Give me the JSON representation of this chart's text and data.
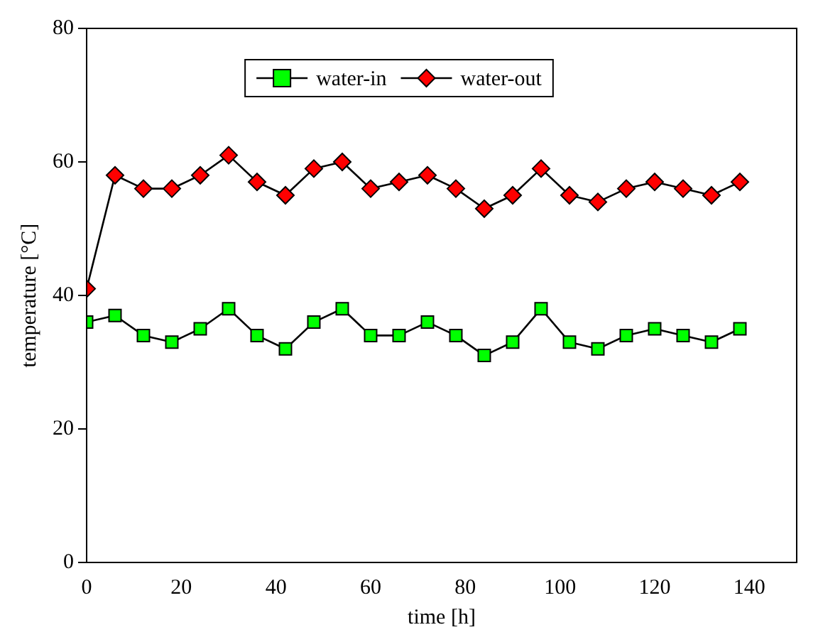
{
  "chart_data": {
    "type": "line",
    "xlabel": "time [h]",
    "ylabel": "temperature [°C]",
    "x": [
      0,
      6,
      12,
      18,
      24,
      30,
      36,
      42,
      48,
      54,
      60,
      66,
      72,
      78,
      84,
      90,
      96,
      102,
      108,
      114,
      120,
      126,
      132,
      138
    ],
    "series": [
      {
        "name": "water-in",
        "color": "#00ff00",
        "marker": "square",
        "values": [
          36,
          37,
          34,
          33,
          35,
          38,
          34,
          32,
          36,
          38,
          34,
          34,
          36,
          34,
          31,
          33,
          38,
          33,
          32,
          34,
          35,
          34,
          33,
          35
        ]
      },
      {
        "name": "water-out",
        "color": "#ff0000",
        "marker": "diamond",
        "values": [
          41,
          58,
          56,
          56,
          58,
          61,
          57,
          55,
          59,
          60,
          56,
          57,
          58,
          56,
          53,
          55,
          59,
          55,
          54,
          56,
          57,
          56,
          55,
          57
        ]
      }
    ],
    "xlim": [
      0,
      150
    ],
    "xticks": [
      0,
      20,
      40,
      60,
      80,
      100,
      120,
      140
    ],
    "ylim": [
      0,
      80
    ],
    "yticks": [
      0,
      20,
      40,
      60,
      80
    ],
    "grid": false,
    "legend": "top",
    "line_style": "solid"
  }
}
